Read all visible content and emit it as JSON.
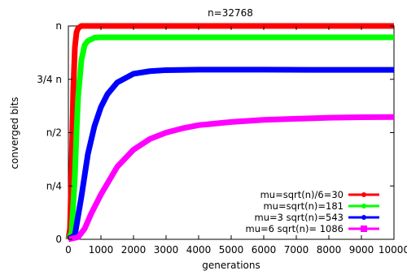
{
  "chart_data": {
    "type": "line",
    "title": "n=32768",
    "xlabel": "generations",
    "ylabel": "converged bits",
    "xlim": [
      0,
      10000
    ],
    "ylim": [
      0,
      1
    ],
    "x_ticks": [
      0,
      1000,
      2000,
      3000,
      4000,
      5000,
      6000,
      7000,
      8000,
      9000,
      10000
    ],
    "x_tick_labels": [
      "0",
      "1000",
      "2000",
      "3000",
      "4000",
      "5000",
      "6000",
      "7000",
      "8000",
      "9000",
      "10000"
    ],
    "y_ticks": [
      0,
      0.25,
      0.5,
      0.75,
      1
    ],
    "y_tick_labels": [
      "0",
      "n/4",
      "n/2",
      "3/4 n",
      "n"
    ],
    "grid": false,
    "legend_position": "bottom-right",
    "series": [
      {
        "name": "mu=sqrt(n)/6=30",
        "color": "#ff0000",
        "marker": "circle",
        "points": [
          [
            0,
            0
          ],
          [
            50,
            0.05
          ],
          [
            100,
            0.35
          ],
          [
            150,
            0.7
          ],
          [
            200,
            0.9
          ],
          [
            250,
            0.97
          ],
          [
            300,
            0.99
          ],
          [
            400,
            1.0
          ],
          [
            1000,
            1.0
          ],
          [
            2000,
            1.0
          ],
          [
            5000,
            1.0
          ],
          [
            10000,
            1.0
          ]
        ]
      },
      {
        "name": "mu=sqrt(n)=181",
        "color": "#00ff00",
        "marker": "circle",
        "points": [
          [
            0,
            0
          ],
          [
            100,
            0.03
          ],
          [
            200,
            0.3
          ],
          [
            250,
            0.5
          ],
          [
            300,
            0.67
          ],
          [
            400,
            0.84
          ],
          [
            500,
            0.91
          ],
          [
            600,
            0.93
          ],
          [
            800,
            0.945
          ],
          [
            1000,
            0.947
          ],
          [
            2000,
            0.947
          ],
          [
            5000,
            0.947
          ],
          [
            10000,
            0.947
          ]
        ]
      },
      {
        "name": "mu=3 sqrt(n)=543",
        "color": "#0000ff",
        "marker": "circle",
        "points": [
          [
            0,
            0
          ],
          [
            200,
            0.02
          ],
          [
            400,
            0.2
          ],
          [
            600,
            0.4
          ],
          [
            800,
            0.53
          ],
          [
            1000,
            0.62
          ],
          [
            1200,
            0.68
          ],
          [
            1500,
            0.735
          ],
          [
            2000,
            0.776
          ],
          [
            2500,
            0.788
          ],
          [
            3000,
            0.793
          ],
          [
            4000,
            0.795
          ],
          [
            6000,
            0.795
          ],
          [
            8000,
            0.794
          ],
          [
            10000,
            0.794
          ]
        ]
      },
      {
        "name": "mu=6 sqrt(n)= 1086",
        "color": "#ff00ff",
        "marker": "square",
        "points": [
          [
            0,
            0
          ],
          [
            300,
            0.01
          ],
          [
            500,
            0.05
          ],
          [
            700,
            0.12
          ],
          [
            1000,
            0.21
          ],
          [
            1500,
            0.34
          ],
          [
            2000,
            0.42
          ],
          [
            2500,
            0.47
          ],
          [
            3000,
            0.5
          ],
          [
            3500,
            0.52
          ],
          [
            4000,
            0.535
          ],
          [
            5000,
            0.55
          ],
          [
            6000,
            0.56
          ],
          [
            7000,
            0.565
          ],
          [
            8000,
            0.57
          ],
          [
            9000,
            0.572
          ],
          [
            10000,
            0.573
          ]
        ]
      }
    ]
  }
}
